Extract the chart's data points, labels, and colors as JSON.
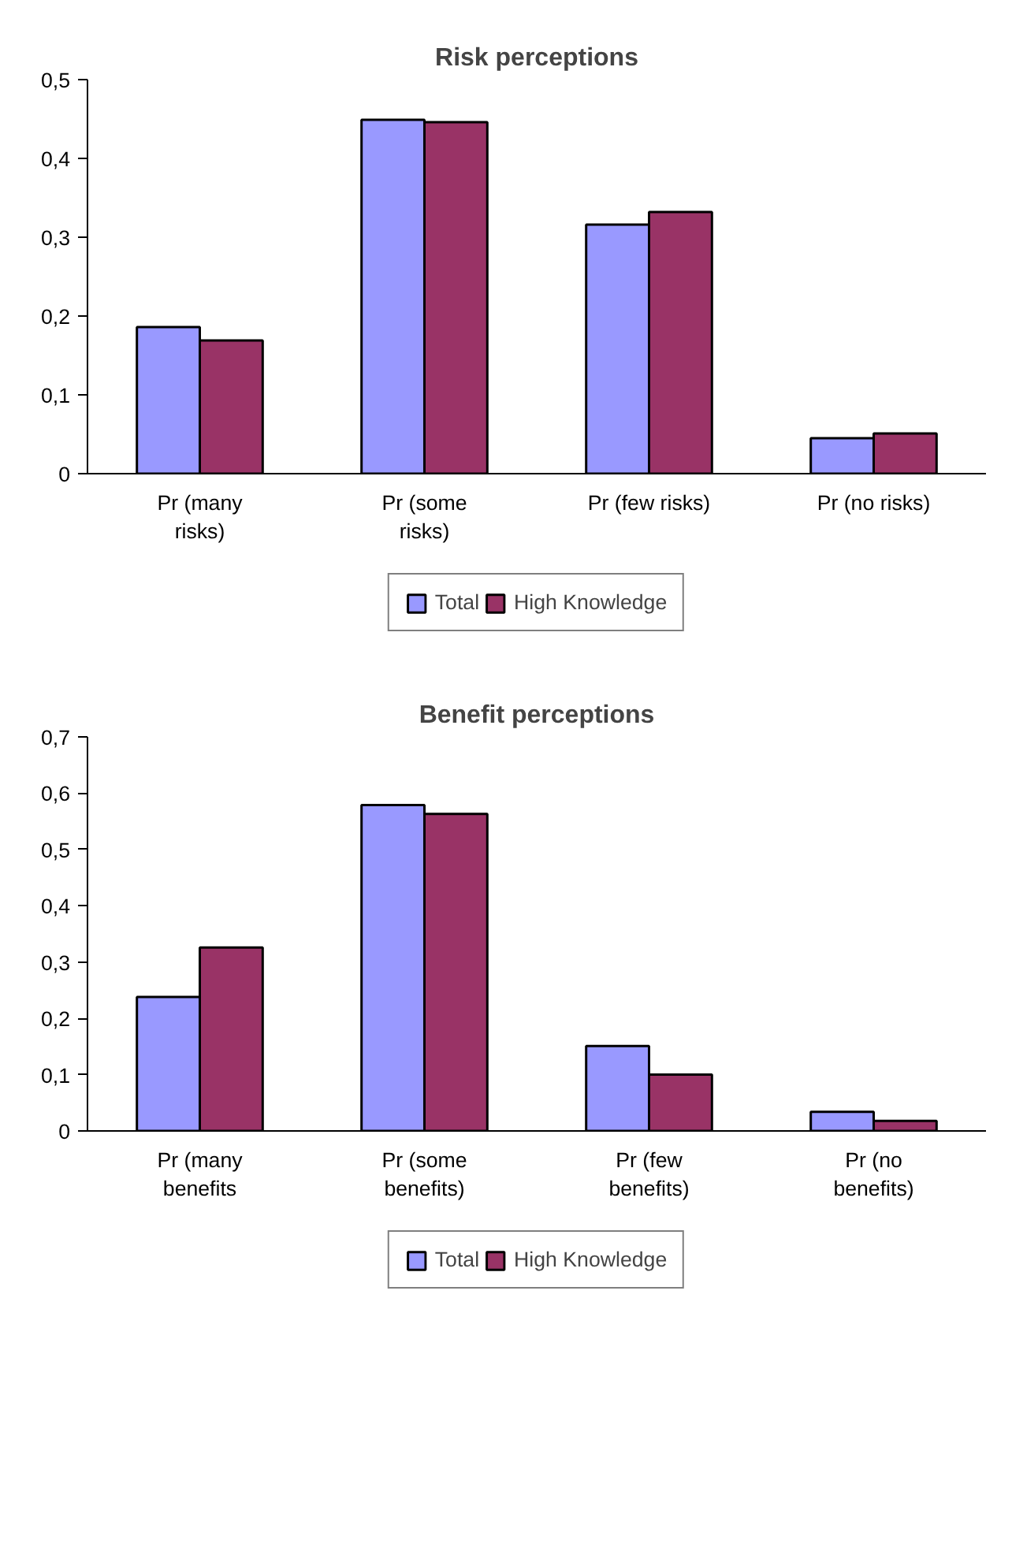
{
  "chart_data": [
    {
      "type": "bar",
      "title": "Risk perceptions",
      "categories": [
        "Pr (many risks)",
        "Pr (some risks)",
        "Pr (few risks)",
        "Pr (no risks)"
      ],
      "series": [
        {
          "name": "Total",
          "color": "#9999ff",
          "values": [
            0.186,
            0.449,
            0.316,
            0.045
          ]
        },
        {
          "name": "High Knowledge",
          "color": "#993366",
          "values": [
            0.169,
            0.446,
            0.332,
            0.051
          ]
        }
      ],
      "ylim": [
        0,
        0.5
      ],
      "yticks": [
        0,
        {
          "value": 0.1,
          "label": "0,1"
        },
        {
          "value": 0.2,
          "label": "0,2"
        },
        {
          "value": 0.3,
          "label": "0,3"
        },
        {
          "value": 0.4,
          "label": "0,4"
        },
        {
          "value": 0.5,
          "label": "0,5"
        }
      ],
      "grid": false,
      "legend": "bottom"
    },
    {
      "type": "bar",
      "title": "Benefit perceptions",
      "categories": [
        "Pr (many benefits",
        "Pr (some benefits)",
        "Pr (few benefits)",
        "Pr (no benefits)"
      ],
      "series": [
        {
          "name": "Total",
          "color": "#9999ff",
          "values": [
            0.238,
            0.579,
            0.151,
            0.034
          ]
        },
        {
          "name": "High Knowledge",
          "color": "#993366",
          "values": [
            0.326,
            0.563,
            0.1,
            0.018
          ]
        }
      ],
      "ylim": [
        0,
        0.7
      ],
      "yticks": [
        0,
        {
          "value": 0.1,
          "label": "0,1"
        },
        {
          "value": 0.2,
          "label": "0,2"
        },
        {
          "value": 0.3,
          "label": "0,3"
        },
        {
          "value": 0.4,
          "label": "0,4"
        },
        {
          "value": 0.5,
          "label": "0,5"
        },
        {
          "value": 0.6,
          "label": "0,6"
        },
        {
          "value": 0.7,
          "label": "0,7"
        }
      ],
      "grid": false,
      "legend": "bottom"
    }
  ]
}
